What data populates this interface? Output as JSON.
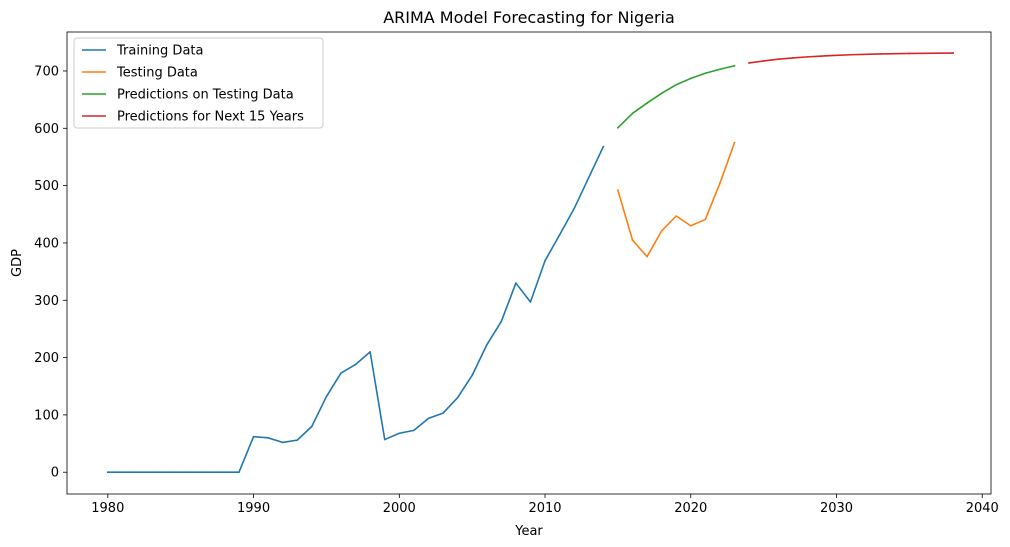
{
  "chart_data": {
    "type": "line",
    "title": "ARIMA Model Forecasting for Nigeria",
    "xlabel": "Year",
    "ylabel": "GDP",
    "xlim": [
      1977.2,
      2040.6
    ],
    "ylim": [
      -38,
      768
    ],
    "xticks": [
      1980,
      1990,
      2000,
      2010,
      2020,
      2030,
      2040
    ],
    "yticks": [
      0,
      100,
      200,
      300,
      400,
      500,
      600,
      700
    ],
    "grid": false,
    "legend_position": "top-left",
    "series": [
      {
        "name": "Training Data",
        "color": "#1f77b4",
        "x": [
          1980,
          1981,
          1982,
          1983,
          1984,
          1985,
          1986,
          1987,
          1988,
          1989,
          1990,
          1991,
          1992,
          1993,
          1994,
          1995,
          1996,
          1997,
          1998,
          1999,
          2000,
          2001,
          2002,
          2003,
          2004,
          2005,
          2006,
          2007,
          2008,
          2009,
          2010,
          2011,
          2012,
          2013,
          2014
        ],
        "y": [
          0,
          0,
          0,
          0,
          0,
          0,
          0,
          0,
          0,
          0,
          62,
          60,
          52,
          56,
          80,
          132,
          173,
          188,
          210,
          57,
          68,
          73,
          94,
          103,
          130,
          169,
          222,
          263,
          330,
          297,
          369,
          414,
          460,
          514,
          568
        ]
      },
      {
        "name": "Testing Data",
        "color": "#ff7f0e",
        "x": [
          2015,
          2016,
          2017,
          2018,
          2019,
          2020,
          2021,
          2022,
          2023
        ],
        "y": [
          492,
          405,
          376,
          421,
          447,
          430,
          441,
          504,
          575
        ]
      },
      {
        "name": "Predictions on Testing Data",
        "color": "#2ca02c",
        "x": [
          2015,
          2016,
          2017,
          2018,
          2019,
          2020,
          2021,
          2022,
          2023
        ],
        "y": [
          601,
          626,
          644,
          661,
          676,
          687,
          696,
          703,
          709
        ]
      },
      {
        "name": "Predictions for Next 15 Years",
        "color": "#d62728",
        "x": [
          2024,
          2025,
          2026,
          2027,
          2028,
          2029,
          2030,
          2031,
          2032,
          2033,
          2034,
          2035,
          2036,
          2037,
          2038
        ],
        "y": [
          714,
          717.5,
          720.5,
          722.8,
          724.6,
          726.1,
          727.3,
          728.3,
          729.1,
          729.7,
          730.2,
          730.6,
          730.9,
          731.1,
          731.3
        ]
      }
    ]
  }
}
